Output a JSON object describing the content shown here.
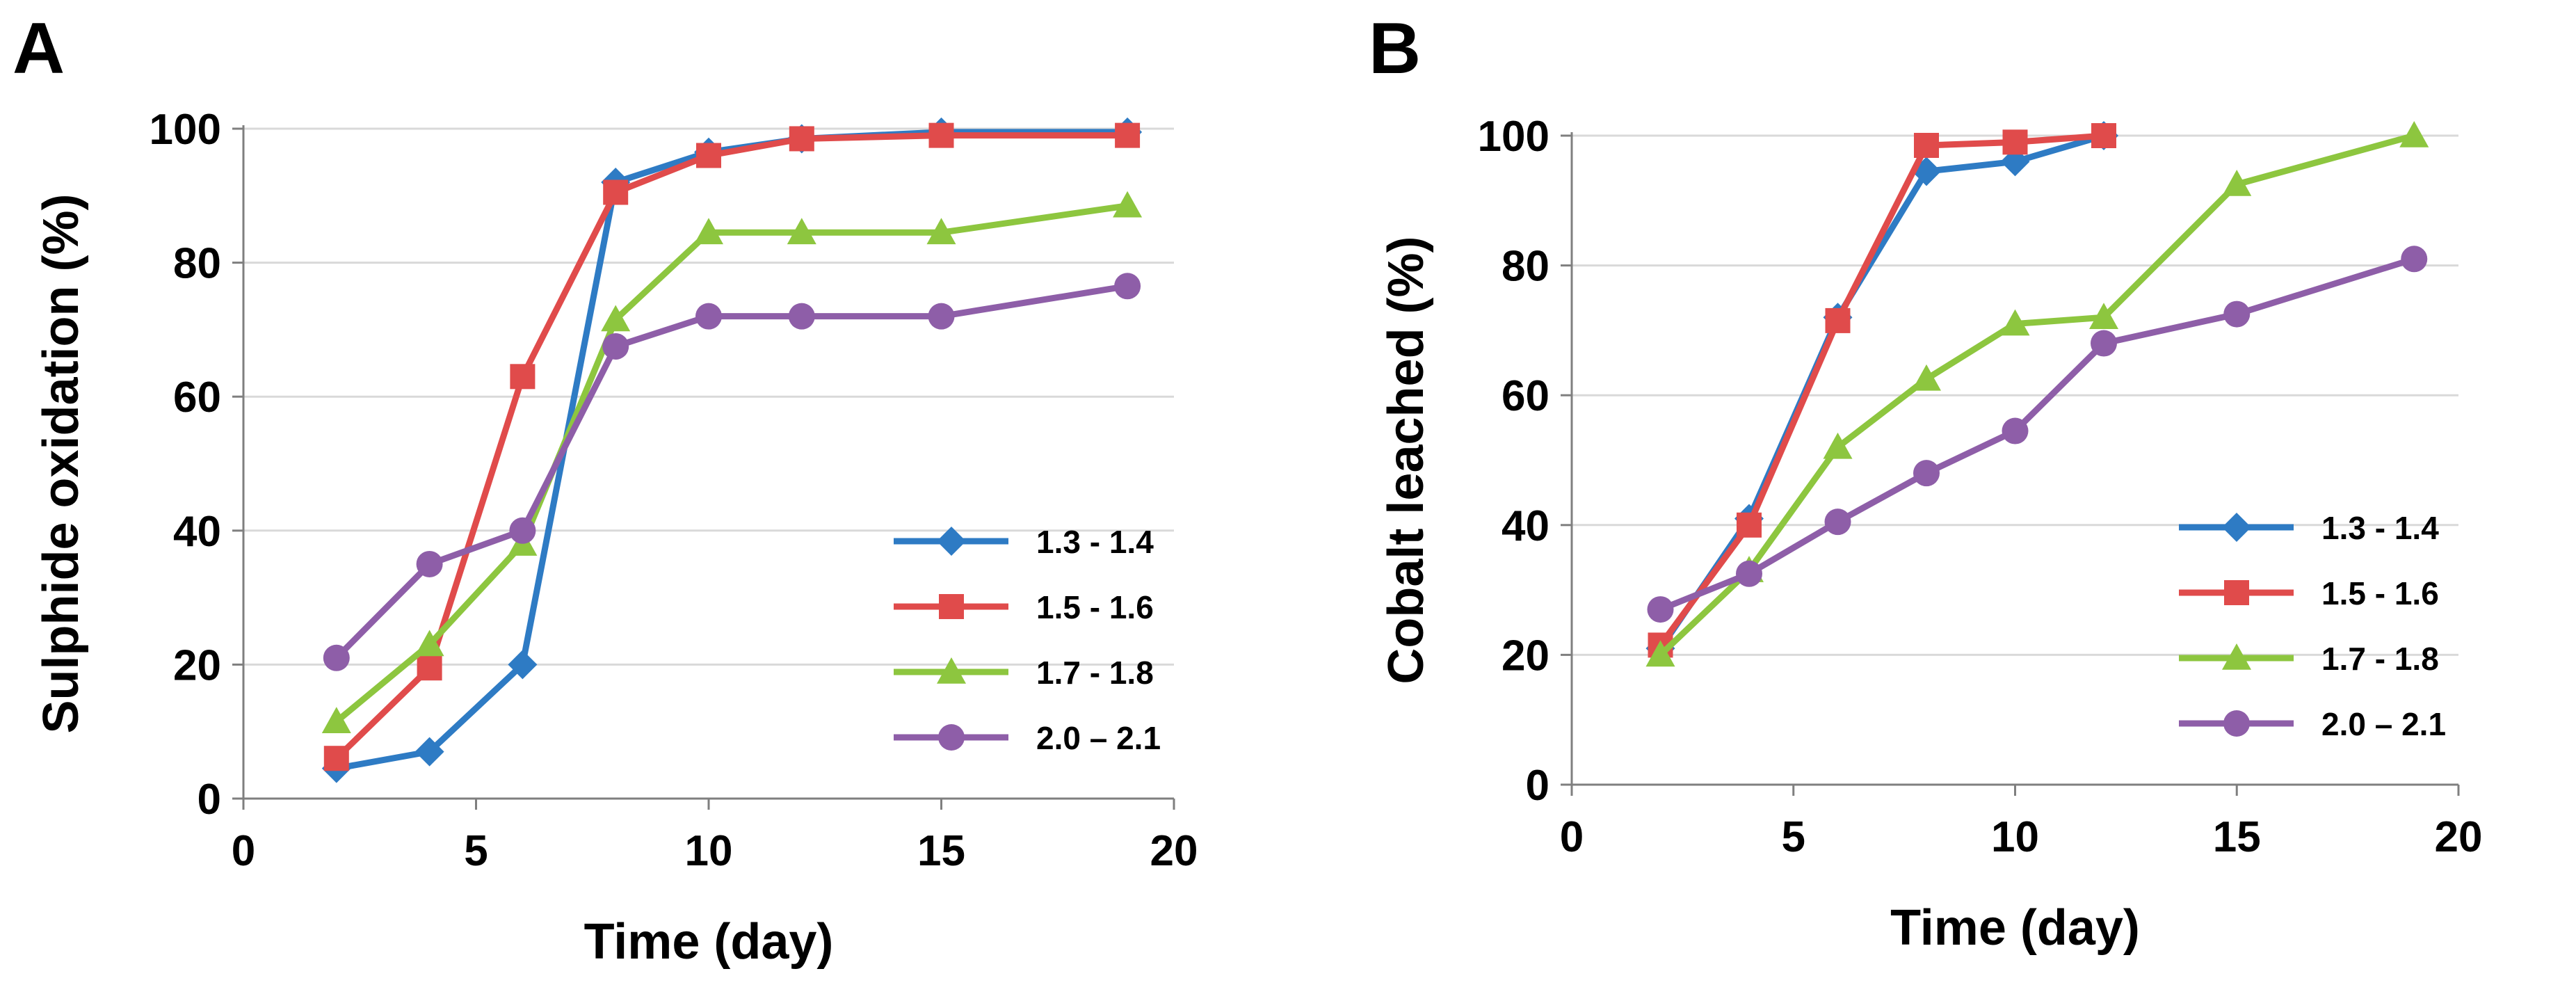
{
  "chart_data": [
    {
      "panel_label": "A",
      "type": "line",
      "xlabel": "Time (day)",
      "ylabel": "Sulphide oxidation (%)",
      "xlim": [
        0,
        20
      ],
      "ylim": [
        0,
        100
      ],
      "xticks": [
        "0",
        "5",
        "10",
        "15",
        "20"
      ],
      "yticks": [
        "0",
        "20",
        "40",
        "60",
        "80",
        "100"
      ],
      "grid": "horizontal",
      "legend_position": "lower-right",
      "series": [
        {
          "name": "1.3 - 1.4",
          "color": "#2E7BC4",
          "marker": "diamond",
          "points": [
            [
              2,
              4.5
            ],
            [
              4,
              7
            ],
            [
              6,
              20
            ],
            [
              8,
              92
            ],
            [
              10,
              96.5
            ],
            [
              12,
              98.5
            ],
            [
              15,
              99.5
            ],
            [
              19,
              99.5
            ]
          ]
        },
        {
          "name": "1.5 - 1.6",
          "color": "#E04B4B",
          "marker": "square",
          "points": [
            [
              2,
              6
            ],
            [
              4,
              19.5
            ],
            [
              6,
              63
            ],
            [
              8,
              90.5
            ],
            [
              10,
              96
            ],
            [
              12,
              98.5
            ],
            [
              15,
              99
            ],
            [
              19,
              99
            ]
          ]
        },
        {
          "name": "1.7 - 1.8",
          "color": "#8DC63F",
          "marker": "triangle",
          "points": [
            [
              2,
              11.5
            ],
            [
              4,
              23
            ],
            [
              6,
              38
            ],
            [
              8,
              71.5
            ],
            [
              10,
              84.5
            ],
            [
              12,
              84.5
            ],
            [
              15,
              84.5
            ],
            [
              19,
              88.5
            ]
          ]
        },
        {
          "name": "2.0 – 2.1",
          "color": "#8E5EA8",
          "marker": "circle",
          "points": [
            [
              2,
              21
            ],
            [
              4,
              35
            ],
            [
              6,
              40
            ],
            [
              8,
              67.5
            ],
            [
              10,
              72
            ],
            [
              12,
              72
            ],
            [
              15,
              72
            ],
            [
              19,
              76.5
            ]
          ]
        }
      ]
    },
    {
      "panel_label": "B",
      "type": "line",
      "xlabel": "Time (day)",
      "ylabel": "Cobalt leached (%)",
      "xlim": [
        0,
        20
      ],
      "ylim": [
        0,
        100
      ],
      "xticks": [
        "0",
        "5",
        "10",
        "15",
        "20"
      ],
      "yticks": [
        "0",
        "20",
        "40",
        "60",
        "80",
        "100"
      ],
      "grid": "horizontal",
      "legend_position": "lower-right",
      "series": [
        {
          "name": "1.3 - 1.4",
          "color": "#2E7BC4",
          "marker": "diamond",
          "points": [
            [
              2,
              21
            ],
            [
              4,
              41
            ],
            [
              6,
              72
            ],
            [
              8,
              94.5
            ],
            [
              10,
              96
            ],
            [
              12,
              100
            ]
          ]
        },
        {
          "name": "1.5 - 1.6",
          "color": "#E04B4B",
          "marker": "square",
          "points": [
            [
              2,
              21.5
            ],
            [
              4,
              40
            ],
            [
              6,
              71.5
            ],
            [
              8,
              98.5
            ],
            [
              10,
              99
            ],
            [
              12,
              100
            ]
          ]
        },
        {
          "name": "1.7 - 1.8",
          "color": "#8DC63F",
          "marker": "triangle",
          "points": [
            [
              2,
              20
            ],
            [
              4,
              33
            ],
            [
              6,
              52
            ],
            [
              8,
              62.5
            ],
            [
              10,
              71
            ],
            [
              12,
              72
            ],
            [
              15,
              92.5
            ],
            [
              19,
              100
            ]
          ]
        },
        {
          "name": "2.0 – 2.1",
          "color": "#8E5EA8",
          "marker": "circle",
          "points": [
            [
              2,
              27
            ],
            [
              4,
              32.5
            ],
            [
              6,
              40.5
            ],
            [
              8,
              48
            ],
            [
              10,
              54.5
            ],
            [
              12,
              68
            ],
            [
              15,
              72.5
            ],
            [
              19,
              81
            ]
          ]
        }
      ]
    }
  ]
}
